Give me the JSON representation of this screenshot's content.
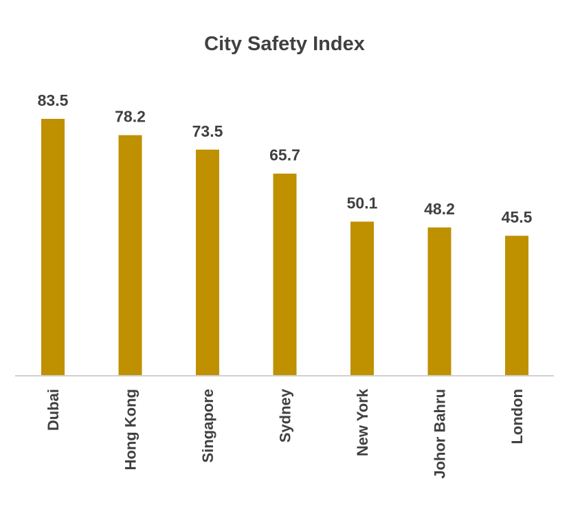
{
  "chart_data": {
    "type": "bar",
    "title": "City Safety Index",
    "xlabel": "",
    "ylabel": "",
    "categories": [
      "Dubai",
      "Hong Kong",
      "Singapore",
      "Sydney",
      "New York",
      "Johor Bahru",
      "London"
    ],
    "values": [
      83.5,
      78.2,
      73.5,
      65.7,
      50.1,
      48.2,
      45.5
    ],
    "value_labels": [
      "83.5",
      "78.2",
      "73.5",
      "65.7",
      "50.1",
      "48.2",
      "45.5"
    ],
    "ylim": [
      0,
      83.5
    ],
    "grid": false,
    "legend": "none",
    "bar_color": "#BF9000",
    "text_color": "#404040",
    "axis_color": "#D0D0D0"
  }
}
